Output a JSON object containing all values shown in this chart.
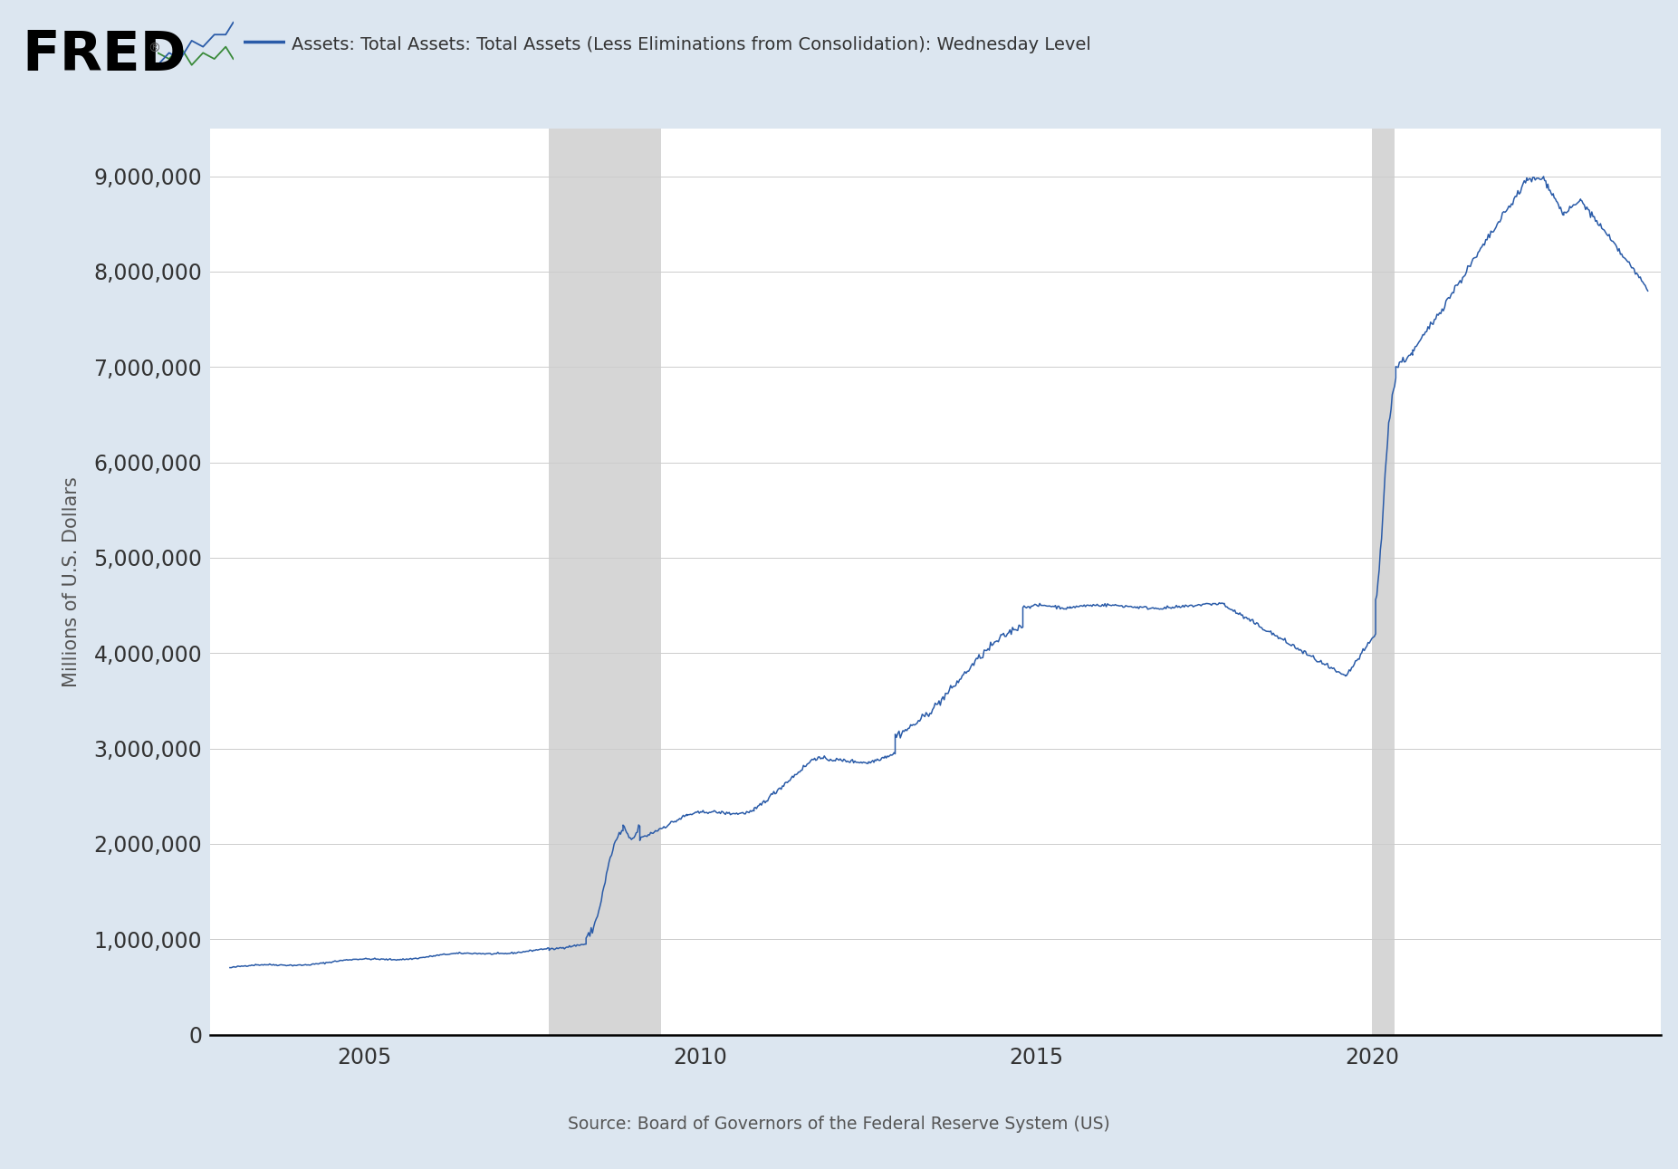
{
  "title": "Assets: Total Assets: Total Assets (Less Eliminations from Consolidation): Wednesday Level",
  "ylabel": "Millions of U.S. Dollars",
  "source": "Source: Board of Governors of the Federal Reserve System (US)",
  "line_color": "#2a5ba8",
  "background_color": "#dce6f0",
  "plot_bg_color": "#ffffff",
  "recession_color": "#cccccc",
  "recession_alpha": 0.8,
  "recessions": [
    [
      2007.75,
      2009.42
    ]
  ],
  "recession2": [
    [
      2020.0,
      2020.33
    ]
  ],
  "ylim": [
    0,
    9500000
  ],
  "yticks": [
    0,
    1000000,
    2000000,
    3000000,
    4000000,
    5000000,
    6000000,
    7000000,
    8000000,
    9000000
  ],
  "xlim_start": 2002.7,
  "xlim_end": 2024.3,
  "xtick_years": [
    2005,
    2010,
    2015,
    2020
  ]
}
